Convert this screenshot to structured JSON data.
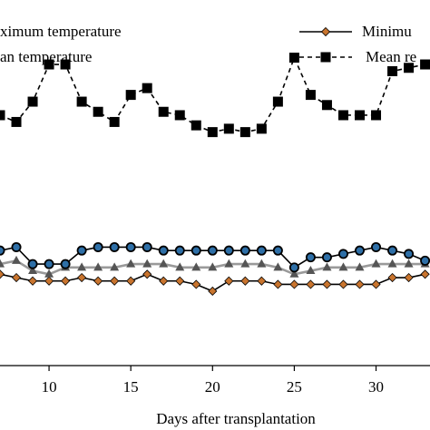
{
  "chart_data": {
    "type": "line",
    "xlabel": "Days after transplantation",
    "xlim": [
      7,
      33.3
    ],
    "ylim": [
      0,
      1
    ],
    "x_ticks": [
      10,
      15,
      20,
      25,
      30
    ],
    "legend": {
      "left": [
        {
          "label": "ximum temperature"
        },
        {
          "label": "an temperature"
        }
      ],
      "right": [
        {
          "label": "Minimu",
          "series_index": 3
        },
        {
          "label": "Mean re",
          "series_index": 0
        }
      ]
    },
    "series": [
      {
        "marker": "square",
        "color": "#000000",
        "dash": "5,4",
        "marker_fill": "#000000",
        "x": [
          7,
          8,
          9,
          10,
          11,
          12,
          13,
          14,
          15,
          16,
          17,
          18,
          19,
          20,
          21,
          22,
          23,
          24,
          25,
          26,
          27,
          28,
          29,
          30,
          31,
          32,
          33
        ],
        "y": [
          0.74,
          0.72,
          0.78,
          0.89,
          0.89,
          0.78,
          0.75,
          0.72,
          0.8,
          0.82,
          0.75,
          0.74,
          0.71,
          0.69,
          0.7,
          0.69,
          0.7,
          0.78,
          0.91,
          0.8,
          0.77,
          0.74,
          0.74,
          0.74,
          0.87,
          0.88,
          0.89
        ]
      },
      {
        "marker": "circle",
        "color": "#000000",
        "dash": "",
        "marker_fill": "#2e6fa7",
        "x": [
          7,
          8,
          9,
          10,
          11,
          12,
          13,
          14,
          15,
          16,
          17,
          18,
          19,
          20,
          21,
          22,
          23,
          24,
          25,
          26,
          27,
          28,
          29,
          30,
          31,
          32,
          33
        ],
        "y": [
          0.34,
          0.35,
          0.3,
          0.3,
          0.3,
          0.34,
          0.35,
          0.35,
          0.35,
          0.35,
          0.34,
          0.34,
          0.34,
          0.34,
          0.34,
          0.34,
          0.34,
          0.34,
          0.29,
          0.32,
          0.32,
          0.33,
          0.34,
          0.35,
          0.34,
          0.33,
          0.31
        ]
      },
      {
        "marker": "triangle",
        "color": "#9a9a9a",
        "dash": "",
        "marker_fill": "#555555",
        "x": [
          7,
          8,
          9,
          10,
          11,
          12,
          13,
          14,
          15,
          16,
          17,
          18,
          19,
          20,
          21,
          22,
          23,
          24,
          25,
          26,
          27,
          28,
          29,
          30,
          31,
          32,
          33
        ],
        "y": [
          0.3,
          0.31,
          0.28,
          0.27,
          0.29,
          0.29,
          0.29,
          0.29,
          0.3,
          0.3,
          0.3,
          0.29,
          0.29,
          0.29,
          0.3,
          0.3,
          0.3,
          0.29,
          0.27,
          0.28,
          0.29,
          0.29,
          0.29,
          0.3,
          0.3,
          0.3,
          0.3
        ]
      },
      {
        "marker": "diamond",
        "color": "#000000",
        "dash": "",
        "marker_fill": "#c8742e",
        "x": [
          7,
          8,
          9,
          10,
          11,
          12,
          13,
          14,
          15,
          16,
          17,
          18,
          19,
          20,
          21,
          22,
          23,
          24,
          25,
          26,
          27,
          28,
          29,
          30,
          31,
          32,
          33
        ],
        "y": [
          0.27,
          0.26,
          0.25,
          0.25,
          0.25,
          0.26,
          0.25,
          0.25,
          0.25,
          0.27,
          0.25,
          0.25,
          0.24,
          0.22,
          0.25,
          0.25,
          0.25,
          0.24,
          0.24,
          0.24,
          0.24,
          0.24,
          0.24,
          0.24,
          0.26,
          0.26,
          0.27
        ]
      }
    ]
  }
}
